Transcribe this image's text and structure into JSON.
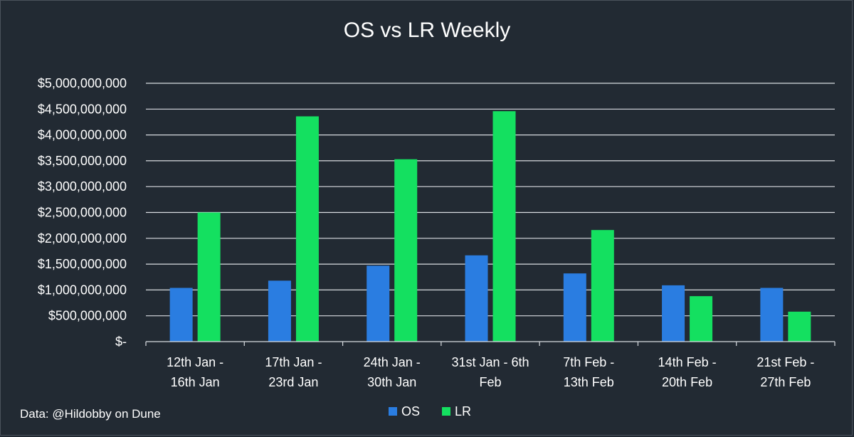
{
  "chart_data": {
    "type": "bar",
    "title": "OS vs LR Weekly",
    "categories": [
      [
        "12th Jan -",
        "16th Jan"
      ],
      [
        "17th Jan -",
        "23rd Jan"
      ],
      [
        "24th Jan -",
        "30th Jan"
      ],
      [
        "31st Jan - 6th",
        "Feb"
      ],
      [
        "7th Feb  -",
        "13th Feb"
      ],
      [
        "14th Feb -",
        "20th Feb"
      ],
      [
        "21st Feb -",
        "27th Feb"
      ]
    ],
    "series": [
      {
        "name": "OS",
        "color": "#2a7de1",
        "values": [
          1040000000,
          1180000000,
          1470000000,
          1670000000,
          1320000000,
          1090000000,
          1040000000
        ]
      },
      {
        "name": "LR",
        "color": "#14e060",
        "values": [
          2500000000,
          4360000000,
          3530000000,
          4460000000,
          2160000000,
          880000000,
          580000000
        ]
      }
    ],
    "ylim": [
      0,
      5000000000
    ],
    "yticks": [
      {
        "value": 0,
        "label": "$-"
      },
      {
        "value": 500000000,
        "label": "$500,000,000"
      },
      {
        "value": 1000000000,
        "label": "$1,000,000,000"
      },
      {
        "value": 1500000000,
        "label": "$1,500,000,000"
      },
      {
        "value": 2000000000,
        "label": "$2,000,000,000"
      },
      {
        "value": 2500000000,
        "label": "$2,500,000,000"
      },
      {
        "value": 3000000000,
        "label": "$3,000,000,000"
      },
      {
        "value": 3500000000,
        "label": "$3,500,000,000"
      },
      {
        "value": 4000000000,
        "label": "$4,000,000,000"
      },
      {
        "value": 4500000000,
        "label": "$4,500,000,000"
      },
      {
        "value": 5000000000,
        "label": "$5,000,000,000"
      }
    ],
    "grid": true,
    "legend_position": "bottom",
    "source_note": "Data: @Hildobby on Dune"
  }
}
